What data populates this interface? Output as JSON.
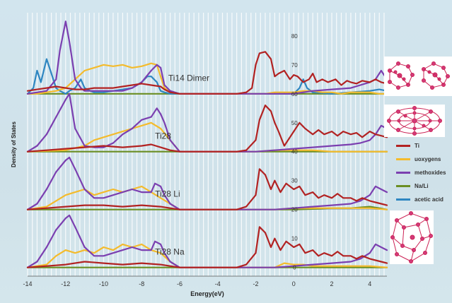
{
  "chart_data": {
    "type": "line",
    "xlabel": "Energy(eV)",
    "ylabel": "Density of States",
    "xlim": [
      -14,
      4.9
    ],
    "x_ticks": [
      "-14",
      "-12",
      "-10",
      "-8",
      "-6",
      "-4",
      "-2",
      "0",
      "2",
      "4"
    ],
    "y_ticks": [
      "0",
      "10",
      "20",
      "30",
      "40",
      "50",
      "60",
      "70",
      "80"
    ],
    "ylim": [
      -3,
      88
    ],
    "grid": "vertical dashed white",
    "panels": [
      {
        "label": "Ti14 Dimer",
        "baseline": 60
      },
      {
        "label": "Ti28",
        "baseline": 40
      },
      {
        "label": "Ti28 Li",
        "baseline": 20
      },
      {
        "label": "Ti28 Na",
        "baseline": 0
      }
    ],
    "legend": {
      "position": "right",
      "entries": [
        {
          "name": "Ti",
          "color": "#b22222"
        },
        {
          "name": "uoxygens",
          "color": "#f4bb2c"
        },
        {
          "name": "methoxides",
          "color": "#7b3fb0"
        },
        {
          "name": "Na/Li",
          "color": "#6b8e23"
        },
        {
          "name": "acetic acid",
          "color": "#2e86c1"
        }
      ]
    },
    "series": [
      {
        "name": "Ti",
        "panel": 0,
        "x": [
          -14,
          -13.5,
          -13,
          -12.5,
          -12,
          -11.5,
          -11,
          -10.5,
          -10,
          -9.5,
          -9,
          -8.5,
          -8,
          -7.5,
          -7,
          -6.8,
          -6.5,
          -6,
          -3,
          -2.5,
          -2.2,
          -2,
          -1.8,
          -1.5,
          -1.2,
          -1,
          -0.8,
          -0.5,
          -0.2,
          0,
          0.2,
          0.5,
          0.8,
          1,
          1.2,
          1.5,
          1.8,
          2,
          2.2,
          2.5,
          2.8,
          3,
          3.3,
          3.6,
          4,
          4.3,
          4.6,
          4.9
        ],
        "y": [
          61,
          61.5,
          62,
          62.5,
          62,
          61.5,
          61.5,
          62,
          62,
          62,
          62.5,
          63,
          63.5,
          63,
          62.5,
          61.5,
          60.5,
          60,
          60,
          60.5,
          62,
          70,
          74,
          74.5,
          72,
          66,
          67,
          68,
          65,
          66.5,
          66,
          64,
          65,
          67,
          64,
          65,
          64,
          64.5,
          65,
          63,
          64.5,
          64,
          63.5,
          64.5,
          64,
          65,
          64,
          63.5
        ]
      },
      {
        "name": "uoxygens",
        "panel": 0,
        "x": [
          -14,
          -13.5,
          -13,
          -12.5,
          -12,
          -11.5,
          -11,
          -10.5,
          -10,
          -9.5,
          -9,
          -8.5,
          -8,
          -7.5,
          -7.2,
          -7,
          -6.8,
          -6.5,
          -6,
          -3,
          -2,
          -1.5,
          -1,
          -0.5,
          0,
          0.5,
          1,
          1.5,
          2,
          2.5,
          3,
          3.5,
          4,
          4.5,
          4.9
        ],
        "y": [
          60,
          60,
          60.5,
          61,
          62,
          65,
          68,
          69,
          70,
          69.5,
          70,
          69,
          69.5,
          70.5,
          70,
          66,
          62,
          60.5,
          60,
          60,
          60,
          60,
          60.5,
          60.5,
          60.5,
          61,
          61,
          60.5,
          60.5,
          60,
          60.5,
          60.5,
          60.5,
          60,
          60
        ]
      },
      {
        "name": "methoxides",
        "panel": 0,
        "x": [
          -14,
          -13,
          -12.5,
          -12.3,
          -12,
          -11.8,
          -11.5,
          -11.2,
          -11,
          -10.5,
          -10,
          -9.5,
          -9,
          -8.5,
          -8,
          -7.5,
          -7.2,
          -7,
          -6.8,
          -6.5,
          -6,
          -3,
          -2,
          -1,
          0,
          0.5,
          1,
          2,
          3,
          3.5,
          4,
          4.3,
          4.6,
          4.9
        ],
        "y": [
          60,
          61,
          65,
          75,
          85,
          78,
          65,
          62,
          61,
          61,
          61,
          61,
          61,
          62,
          64,
          68,
          70,
          69,
          63,
          61,
          60,
          60,
          60,
          60,
          60,
          60.5,
          61,
          61.5,
          62,
          63,
          64,
          65,
          68,
          65
        ]
      },
      {
        "name": "Na/Li",
        "panel": 0,
        "x": [
          -14,
          -6,
          -3,
          4.9
        ],
        "y": [
          60,
          60,
          60,
          60
        ]
      },
      {
        "name": "acetic acid",
        "panel": 0,
        "x": [
          -14,
          -13.7,
          -13.5,
          -13.3,
          -13,
          -12.8,
          -12.5,
          -12.3,
          -12,
          -11.8,
          -11.5,
          -11.2,
          -11,
          -10.7,
          -10.5,
          -10,
          -9.5,
          -9,
          -8.5,
          -8,
          -7.7,
          -7.5,
          -7.2,
          -7,
          -6.8,
          -6.5,
          -6,
          -3,
          -1,
          0,
          0.3,
          0.5,
          0.7,
          1,
          2,
          3,
          4,
          4.5,
          4.9
        ],
        "y": [
          60,
          62,
          68,
          64,
          72,
          68,
          62,
          61,
          60,
          61,
          62,
          65,
          62,
          61,
          60.5,
          60.5,
          61,
          61.5,
          62,
          64,
          66,
          66,
          64,
          61,
          60.5,
          60,
          60,
          60,
          60,
          60,
          62,
          65,
          62,
          60.5,
          60,
          60.5,
          61,
          61.5,
          61
        ]
      },
      {
        "name": "Ti",
        "panel": 1,
        "x": [
          -14,
          -13,
          -12,
          -11,
          -10,
          -9,
          -8,
          -7.5,
          -7,
          -6.5,
          -6,
          -3,
          -2.5,
          -2,
          -1.8,
          -1.5,
          -1.2,
          -1,
          -0.8,
          -0.5,
          -0.2,
          0,
          0.3,
          0.6,
          1,
          1.3,
          1.6,
          2,
          2.3,
          2.6,
          3,
          3.3,
          3.6,
          4,
          4.3,
          4.6,
          4.9
        ],
        "y": [
          40,
          40.5,
          41,
          41.5,
          42,
          41.5,
          42,
          42.5,
          41.5,
          40.5,
          40,
          40,
          40.5,
          44,
          51,
          56,
          54,
          50,
          47,
          42,
          45,
          47,
          50,
          48,
          46,
          47.5,
          46,
          47,
          45.5,
          47,
          46,
          46.5,
          45,
          47,
          46,
          45.5,
          45
        ]
      },
      {
        "name": "uoxygens",
        "panel": 1,
        "x": [
          -14,
          -12,
          -11,
          -10.5,
          -10,
          -9.5,
          -9,
          -8.5,
          -8,
          -7.5,
          -7,
          -6.5,
          -6,
          -3,
          -2,
          -1,
          0,
          1,
          2,
          3,
          4,
          4.9
        ],
        "y": [
          40,
          40.5,
          42,
          44,
          45,
          46,
          47,
          48,
          49,
          50,
          48,
          44,
          40,
          40,
          40,
          40.5,
          40.5,
          40.5,
          40,
          40,
          40,
          40
        ]
      },
      {
        "name": "methoxides",
        "panel": 1,
        "x": [
          -14,
          -13.5,
          -13,
          -12.5,
          -12,
          -11.8,
          -11.5,
          -11,
          -10.5,
          -10,
          -9.5,
          -9,
          -8.5,
          -8,
          -7.5,
          -7.2,
          -7,
          -6.8,
          -6.5,
          -6,
          -3,
          -2,
          -1,
          0,
          1,
          2,
          3,
          3.5,
          4,
          4.3,
          4.6,
          4.9
        ],
        "y": [
          40,
          42,
          46,
          52,
          58,
          60,
          48,
          42,
          41.5,
          41.5,
          43,
          46,
          48,
          51,
          52,
          55,
          53,
          50,
          44,
          40,
          40,
          40,
          40.5,
          41,
          41.5,
          42,
          42.5,
          43,
          44,
          46,
          49,
          48
        ]
      },
      {
        "name": "Na/Li",
        "panel": 1,
        "x": [
          -14,
          -6,
          -3,
          4.9
        ],
        "y": [
          40,
          40,
          40,
          40
        ]
      },
      {
        "name": "Ti",
        "panel": 2,
        "x": [
          -14,
          -13,
          -12,
          -11,
          -10,
          -9,
          -8,
          -7,
          -6.5,
          -6,
          -3,
          -2.5,
          -2,
          -1.8,
          -1.5,
          -1.2,
          -1,
          -0.7,
          -0.4,
          0,
          0.3,
          0.6,
          1,
          1.3,
          1.6,
          2,
          2.3,
          2.6,
          3,
          3.3,
          3.6,
          4,
          4.3,
          4.6,
          4.9
        ],
        "y": [
          20,
          20.5,
          21,
          21.5,
          21.5,
          21,
          21.5,
          21,
          20.5,
          20,
          20,
          21,
          25,
          34,
          32,
          27,
          30,
          26,
          29,
          27,
          28,
          25,
          26,
          24,
          25,
          24,
          25.5,
          24,
          24,
          23,
          24,
          23,
          22.5,
          22,
          21.5
        ]
      },
      {
        "name": "uoxygens",
        "panel": 2,
        "x": [
          -14,
          -13,
          -12.5,
          -12,
          -11.5,
          -11,
          -10.5,
          -10,
          -9.5,
          -9,
          -8.5,
          -8,
          -7.5,
          -7,
          -6.5,
          -6,
          -3,
          -2,
          -1,
          0,
          1,
          2,
          3,
          4,
          4.9
        ],
        "y": [
          20,
          21,
          23,
          25,
          26,
          27,
          25,
          26,
          27,
          26,
          27,
          28,
          26,
          24,
          22,
          20,
          20,
          20,
          20,
          20.5,
          20.5,
          20.5,
          20.5,
          20.5,
          20
        ]
      },
      {
        "name": "methoxides",
        "panel": 2,
        "x": [
          -14,
          -13.5,
          -13,
          -12.5,
          -12,
          -11.8,
          -11.5,
          -11,
          -10.5,
          -10,
          -9.5,
          -9,
          -8.5,
          -8,
          -7.5,
          -7.3,
          -7,
          -6.8,
          -6.5,
          -6,
          -3,
          -2,
          -1,
          0,
          1,
          2,
          3,
          3.5,
          4,
          4.3,
          4.6,
          4.9
        ],
        "y": [
          20,
          22,
          27,
          33,
          37,
          38,
          34,
          27,
          24,
          24,
          25,
          26,
          27,
          26,
          26,
          29,
          28,
          25,
          22,
          20,
          20,
          20,
          20,
          20.5,
          21,
          21.5,
          22,
          23,
          25,
          28,
          27,
          26
        ]
      },
      {
        "name": "Na/Li",
        "panel": 2,
        "x": [
          -14,
          -6,
          -3,
          0,
          1,
          2,
          3,
          4,
          4.5,
          4.9
        ],
        "y": [
          20,
          20,
          20,
          20,
          20.2,
          20.5,
          20.5,
          21,
          20.5,
          20
        ]
      },
      {
        "name": "Ti",
        "panel": 3,
        "x": [
          -14,
          -13,
          -12,
          -11,
          -10,
          -9,
          -8,
          -7,
          -6.5,
          -6,
          -3,
          -2.5,
          -2,
          -1.8,
          -1.5,
          -1.2,
          -1,
          -0.7,
          -0.4,
          0,
          0.3,
          0.6,
          1,
          1.3,
          1.6,
          2,
          2.3,
          2.6,
          3,
          3.3,
          3.6,
          4,
          4.3,
          4.6,
          4.9
        ],
        "y": [
          0,
          0.5,
          1,
          2,
          1.5,
          1,
          1.5,
          1,
          0.5,
          0,
          0,
          1,
          5,
          14,
          12,
          7,
          10,
          6,
          9,
          7,
          8,
          5,
          6,
          4,
          5,
          4,
          5.5,
          4,
          4,
          3,
          4,
          3,
          2.5,
          2,
          1.5
        ]
      },
      {
        "name": "uoxygens",
        "panel": 3,
        "x": [
          -14,
          -13,
          -12.5,
          -12,
          -11.5,
          -11,
          -10.5,
          -10,
          -9.5,
          -9,
          -8.5,
          -8,
          -7.5,
          -7,
          -6.5,
          -6,
          -3,
          -2,
          -1,
          -0.5,
          0,
          0.5,
          1,
          2,
          3,
          4,
          4.9
        ],
        "y": [
          0,
          1,
          4,
          6,
          5,
          6,
          5,
          7,
          6,
          8,
          7,
          8,
          6,
          5,
          2,
          0,
          0,
          0,
          0,
          1.5,
          1,
          1,
          0.5,
          0.5,
          0.5,
          0.5,
          0
        ]
      },
      {
        "name": "methoxides",
        "panel": 3,
        "x": [
          -14,
          -13.5,
          -13,
          -12.5,
          -12,
          -11.8,
          -11.5,
          -11,
          -10.5,
          -10,
          -9.5,
          -9,
          -8.5,
          -8,
          -7.5,
          -7.3,
          -7,
          -6.8,
          -6.5,
          -6,
          -3,
          -2,
          -1,
          0,
          1,
          2,
          3,
          3.5,
          4,
          4.3,
          4.6,
          4.9
        ],
        "y": [
          0,
          2,
          7,
          13,
          17,
          18,
          14,
          7,
          4,
          4,
          5,
          6,
          7,
          6,
          6,
          9,
          8,
          5,
          2,
          0,
          0,
          0,
          0,
          0.5,
          1,
          1.5,
          2,
          3,
          5,
          8,
          7,
          6
        ]
      },
      {
        "name": "Na/Li",
        "panel": 3,
        "x": [
          -14,
          -6,
          -3,
          4.9
        ],
        "y": [
          0,
          0,
          0,
          0
        ]
      }
    ]
  }
}
